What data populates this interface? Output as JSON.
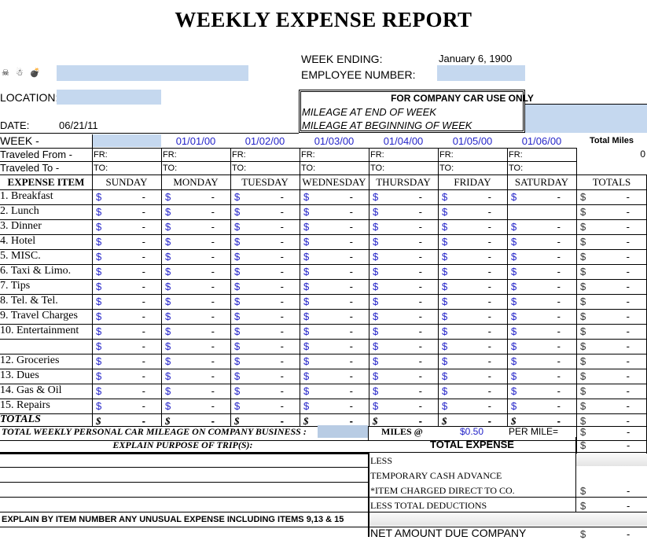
{
  "header": {
    "title": "WEEKLY EXPENSE REPORT",
    "symbols": [
      "☠",
      "☃",
      "💣"
    ],
    "week_ending_label": "WEEK ENDING:",
    "week_ending_value": "January 6, 1900",
    "employee_number_label": "EMPLOYEE NUMBER:",
    "employee_number_value": "",
    "location_label": "LOCATION:",
    "location_value": "",
    "date_label": "DATE:",
    "date_value": "06/21/11",
    "name_value": ""
  },
  "company_car": {
    "title": "FOR COMPANY CAR USE ONLY",
    "mileage_end_label": "MILEAGE AT END OF WEEK",
    "mileage_end_value": "",
    "mileage_begin_label": "MILEAGE AT BEGINNING OF WEEK",
    "mileage_begin_value": ""
  },
  "week_row": {
    "label": "WEEK -",
    "first_value": "",
    "dates": [
      "01/01/00",
      "01/02/00",
      "01/03/00",
      "01/04/00",
      "01/05/00",
      "01/06/00"
    ],
    "total_miles_label": "Total Miles",
    "total_miles_value": "0"
  },
  "travel": {
    "from_label": "Traveled From -",
    "to_label": "Traveled To -",
    "fr_prefix": "FR:",
    "to_prefix": "TO:"
  },
  "table": {
    "item_header": "EXPENSE ITEM",
    "days": [
      "SUNDAY",
      "MONDAY",
      "TUESDAY",
      "WEDNESDAY",
      "THURSDAY",
      "FRIDAY",
      "SATURDAY"
    ],
    "totals_header": "TOTALS",
    "currency": "$",
    "empty_value": "-",
    "items": [
      "1. Breakfast",
      "2. Lunch",
      "3. Dinner",
      "4. Hotel",
      "5.  MISC.",
      "6. Taxi & Limo.",
      "7. Tips",
      "8. Tel. & Tel.",
      "9. Travel Charges",
      "10. Entertainment",
      "",
      "12.  Groceries",
      "13. Dues",
      "14. Gas & Oil",
      "15. Repairs"
    ],
    "totals_row_label": "TOTALS"
  },
  "mileage": {
    "label": "TOTAL WEEKLY PERSONAL CAR MILEAGE ON COMPANY BUSINESS :",
    "value": "",
    "miles_at": "MILES @",
    "rate": "$0.50",
    "per_mile": "PER MILE=",
    "amount_currency": "$",
    "amount": "-"
  },
  "summary": {
    "purpose_label": "EXPLAIN PURPOSE OF TRIP(S):",
    "total_expense_label": "TOTAL EXPENSE",
    "total_expense_currency": "$",
    "total_expense_value": "-",
    "less_label": "LESS",
    "cash_advance_label": "TEMPORARY CASH ADVANCE",
    "charged_direct_label": "*ITEM CHARGED DIRECT TO CO.",
    "charged_direct_currency": "$",
    "charged_direct_value": "-",
    "total_deductions_label": "LESS TOTAL DEDUCTIONS",
    "total_deductions_currency": "$",
    "total_deductions_value": "-",
    "unusual_label": "EXPLAIN BY ITEM NUMBER ANY UNUSUAL EXPENSE INCLUDING ITEMS 9,13 & 15",
    "net_due_label": "NET AMOUNT DUE COMPANY",
    "net_due_currency": "$",
    "net_due_value": "-"
  }
}
